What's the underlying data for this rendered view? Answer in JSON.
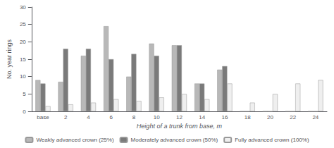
{
  "chart_data": {
    "type": "bar",
    "categories": [
      "base",
      "2",
      "4",
      "6",
      "8",
      "10",
      "12",
      "14",
      "16",
      "18",
      "20",
      "22",
      "24"
    ],
    "series": [
      {
        "name": "Weakly advanced crown (25%)",
        "color": "#b8b8b8",
        "values": [
          9,
          8.5,
          16,
          24.5,
          10,
          19.5,
          19,
          8,
          12,
          0,
          0,
          0,
          0
        ]
      },
      {
        "name": "Moderately advanced crown (50%)",
        "color": "#7a7a7a",
        "values": [
          8,
          18,
          18,
          15,
          16.5,
          16,
          19,
          8,
          13,
          0,
          0,
          0,
          0
        ]
      },
      {
        "name": "Fully advanced crown (100%)",
        "color": "#efefef",
        "values": [
          1.5,
          2,
          2.5,
          3.5,
          3,
          4,
          5,
          3.5,
          8,
          2.5,
          5,
          8,
          9
        ]
      }
    ],
    "xlabel": "Height of a trunk from base, m",
    "ylabel": "No. year rings",
    "ylim": [
      0,
      30
    ],
    "yticks": [
      0,
      5,
      10,
      15,
      20,
      25,
      30
    ],
    "grid": false,
    "legend": "bottom"
  }
}
